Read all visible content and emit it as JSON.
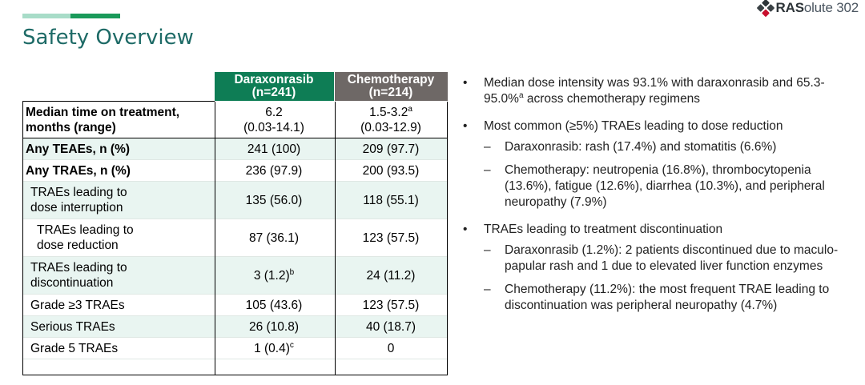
{
  "header": {
    "title": "Safety Overview",
    "logo": {
      "bold": "RAS",
      "rest": "olute 302"
    },
    "accent_colors": [
      "#a8dcc8",
      "#1a9a5a"
    ]
  },
  "table": {
    "col1_header": {
      "line1": "Daraxonrasib",
      "line2": "(n=241)"
    },
    "col2_header": {
      "line1": "Chemotherapy",
      "line2": "(n=214)"
    },
    "rows": [
      {
        "label1": "Median time on treatment,",
        "label2": "months (range)",
        "v1a": "6.2",
        "v1b": "(0.03-14.1)",
        "v2a": "1.5-3.2",
        "v2a_sup": "a",
        "v2b": "(0.03-12.9)"
      },
      {
        "label": "Any TEAEs, n (%)",
        "v1": "241 (100)",
        "v2": "209 (97.7)"
      },
      {
        "label": "Any TRAEs, n (%)",
        "v1": "236 (97.9)",
        "v2": "200 (93.5)"
      },
      {
        "label1": "TRAEs leading to",
        "label2": "dose interruption",
        "v1": "135 (56.0)",
        "v2": "118 (55.1)"
      },
      {
        "label1": "TRAEs leading to",
        "label2": "dose reduction",
        "v1": "87 (36.1)",
        "v2": "123 (57.5)"
      },
      {
        "label1": "TRAEs leading to",
        "label2": "discontinuation",
        "v1": "3 (1.2)",
        "v1_sup": "b",
        "v2": "24 (11.2)"
      },
      {
        "label": "Grade ≥3 TRAEs",
        "v1": "105 (43.6)",
        "v2": "123 (57.5)"
      },
      {
        "label": "Serious TRAEs",
        "v1": "26 (10.8)",
        "v2": "40 (18.7)"
      },
      {
        "label": "Grade 5 TRAEs",
        "v1": "1 (0.4)",
        "v1_sup": "c",
        "v2": "0"
      }
    ]
  },
  "bullets": [
    {
      "pre": "Median dose intensity was 93.1% with daraxonrasib and 65.3-95.0%",
      "sup": "a",
      "post": " across chemotherapy regimens"
    },
    {
      "text": "Most common (≥5%) TRAEs leading to dose reduction",
      "subs": [
        "Daraxonrasib: rash (17.4%) and stomatitis (6.6%)",
        "Chemotherapy: neutropenia (16.8%), thrombocytopenia (13.6%), fatigue (12.6%), diarrhea (10.3%), and peripheral neuropathy (7.9%)"
      ]
    },
    {
      "text": "TRAEs leading to treatment discontinuation",
      "subs": [
        "Daraxonrasib (1.2%): 2 patients discontinued due to maculo-papular rash and 1 due to elevated liver function enzymes",
        "Chemotherapy (11.2%): the most frequent TRAE leading to discontinuation was peripheral neuropathy (4.7%)"
      ]
    }
  ]
}
